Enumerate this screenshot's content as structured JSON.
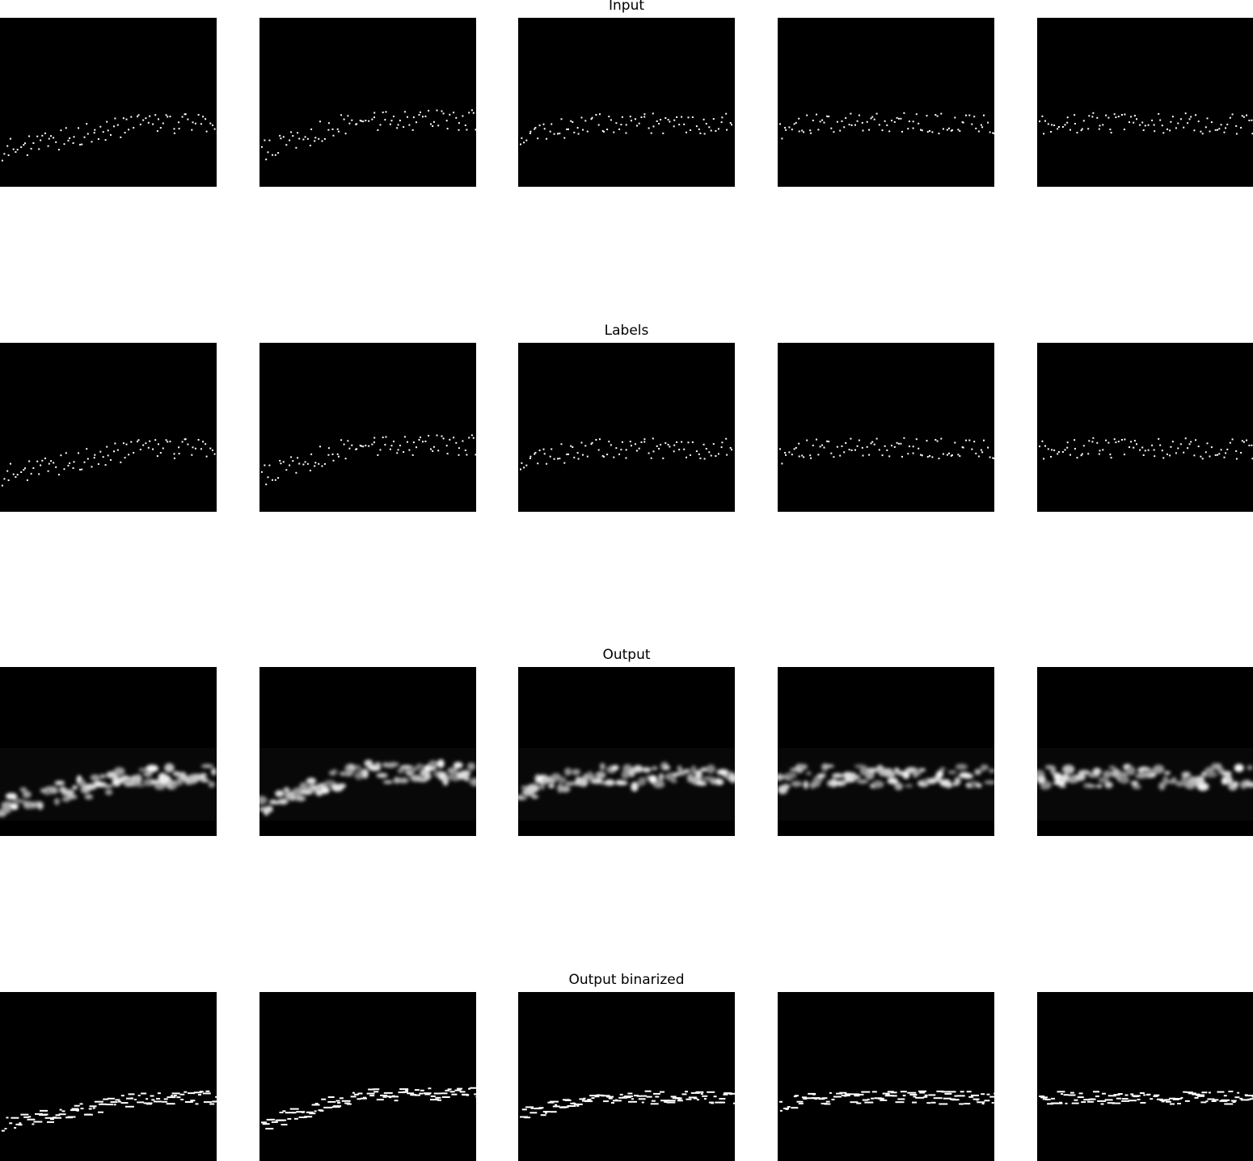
{
  "figure": {
    "rows": [
      {
        "title": "Input",
        "style": "dots",
        "glow": false,
        "panels": 5
      },
      {
        "title": "Labels",
        "style": "dots",
        "glow": false,
        "panels": 5
      },
      {
        "title": "Output",
        "style": "blobs",
        "glow": true,
        "panels": 5
      },
      {
        "title": "Output binarized",
        "style": "dashes",
        "glow": false,
        "panels": 5
      }
    ],
    "colors": {
      "background": "#ffffff",
      "panel": "#000000",
      "marks": "#ffffff"
    }
  }
}
